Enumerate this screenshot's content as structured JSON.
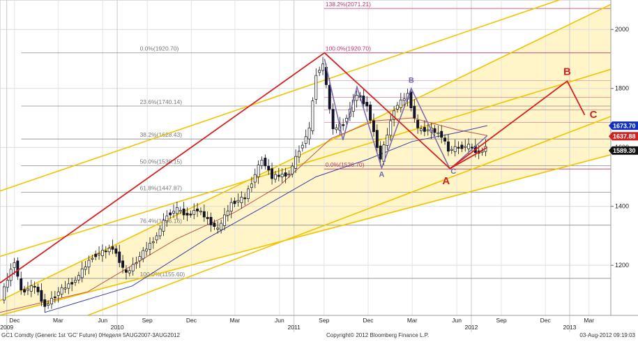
{
  "chart_data": {
    "type": "candlestick",
    "title": "",
    "xlabel": "",
    "ylabel": "",
    "ylim": [
      1030,
      2100
    ],
    "grid": true,
    "y_ticks": [
      1200,
      1400,
      1600,
      1800,
      2000
    ],
    "y_tick_labels": [
      "1200",
      "1400",
      "1600",
      "1800",
      "2000"
    ],
    "month_ticks": [
      {
        "label": "Dec",
        "date": "2009-12-01"
      },
      {
        "label": "Mar",
        "date": "2010-03-01"
      },
      {
        "label": "Jun",
        "date": "2010-06-01"
      },
      {
        "label": "Sep",
        "date": "2010-09-01"
      },
      {
        "label": "Dec",
        "date": "2010-12-01"
      },
      {
        "label": "Mar",
        "date": "2011-03-01"
      },
      {
        "label": "Jun",
        "date": "2011-06-01"
      },
      {
        "label": "Sep",
        "date": "2011-09-01"
      },
      {
        "label": "Dec",
        "date": "2011-12-01"
      },
      {
        "label": "Mar",
        "date": "2012-03-01"
      },
      {
        "label": "Jun",
        "date": "2012-06-01"
      },
      {
        "label": "Sep",
        "date": "2012-09-01"
      },
      {
        "label": "Dec",
        "date": "2012-12-01"
      },
      {
        "label": "Mar",
        "date": "2013-03-01"
      }
    ],
    "year_ticks": [
      {
        "label": "2009",
        "date": "2009-11-15"
      },
      {
        "label": "2010",
        "date": "2010-07-01"
      },
      {
        "label": "2011",
        "date": "2011-07-01"
      },
      {
        "label": "2012",
        "date": "2012-07-01"
      },
      {
        "label": "2013",
        "date": "2013-01-20"
      }
    ],
    "x_range": [
      "2009-11-01",
      "2013-04-15"
    ],
    "price_series": [
      {
        "date": "2009-11-06",
        "price": 1090
      },
      {
        "date": "2009-12-04",
        "price": 1215
      },
      {
        "date": "2009-12-18",
        "price": 1110
      },
      {
        "date": "2010-01-15",
        "price": 1130
      },
      {
        "date": "2010-02-05",
        "price": 1060
      },
      {
        "date": "2010-03-05",
        "price": 1110
      },
      {
        "date": "2010-04-09",
        "price": 1150
      },
      {
        "date": "2010-05-14",
        "price": 1230
      },
      {
        "date": "2010-06-25",
        "price": 1260
      },
      {
        "date": "2010-07-23",
        "price": 1170
      },
      {
        "date": "2010-08-20",
        "price": 1230
      },
      {
        "date": "2010-09-24",
        "price": 1300
      },
      {
        "date": "2010-10-15",
        "price": 1370
      },
      {
        "date": "2010-11-05",
        "price": 1390
      },
      {
        "date": "2010-11-26",
        "price": 1370
      },
      {
        "date": "2010-12-17",
        "price": 1390
      },
      {
        "date": "2011-01-28",
        "price": 1320
      },
      {
        "date": "2011-02-25",
        "price": 1410
      },
      {
        "date": "2011-03-25",
        "price": 1430
      },
      {
        "date": "2011-04-29",
        "price": 1560
      },
      {
        "date": "2011-05-20",
        "price": 1500
      },
      {
        "date": "2011-06-24",
        "price": 1510
      },
      {
        "date": "2011-07-15",
        "price": 1590
      },
      {
        "date": "2011-08-05",
        "price": 1660
      },
      {
        "date": "2011-08-19",
        "price": 1850
      },
      {
        "date": "2011-09-02",
        "price": 1880
      },
      {
        "date": "2011-09-23",
        "price": 1660
      },
      {
        "date": "2011-10-14",
        "price": 1680
      },
      {
        "date": "2011-11-11",
        "price": 1780
      },
      {
        "date": "2011-12-02",
        "price": 1740
      },
      {
        "date": "2011-12-30",
        "price": 1560
      },
      {
        "date": "2012-01-27",
        "price": 1730
      },
      {
        "date": "2012-02-24",
        "price": 1780
      },
      {
        "date": "2012-03-16",
        "price": 1660
      },
      {
        "date": "2012-04-13",
        "price": 1660
      },
      {
        "date": "2012-05-04",
        "price": 1640
      },
      {
        "date": "2012-05-18",
        "price": 1590
      },
      {
        "date": "2012-06-08",
        "price": 1600
      },
      {
        "date": "2012-06-29",
        "price": 1605
      },
      {
        "date": "2012-07-20",
        "price": 1580
      },
      {
        "date": "2012-08-03",
        "price": 1600
      }
    ],
    "moving_averages": [
      {
        "color": "#c0504d",
        "points": [
          [
            "2009-11-01",
            1040
          ],
          [
            "2010-05-01",
            1110
          ],
          [
            "2010-11-01",
            1290
          ],
          [
            "2011-03-01",
            1380
          ],
          [
            "2011-06-01",
            1470
          ],
          [
            "2011-09-15",
            1630
          ],
          [
            "2011-12-15",
            1690
          ],
          [
            "2012-03-01",
            1700
          ],
          [
            "2012-06-01",
            1660
          ],
          [
            "2012-08-03",
            1640
          ]
        ]
      },
      {
        "color": "#3a3ea0",
        "points": [
          [
            "2010-02-01",
            1040
          ],
          [
            "2010-08-01",
            1130
          ],
          [
            "2011-01-01",
            1290
          ],
          [
            "2011-05-01",
            1400
          ],
          [
            "2011-08-15",
            1500
          ],
          [
            "2011-12-01",
            1560
          ],
          [
            "2012-03-01",
            1620
          ],
          [
            "2012-06-01",
            1650
          ],
          [
            "2012-08-03",
            1674
          ]
        ]
      }
    ],
    "channel_lines": [
      {
        "color": "#f2c400",
        "points": [
          [
            "2009-11-01",
            1080
          ],
          [
            "2013-04-15",
            2085
          ]
        ]
      },
      {
        "color": "#f2c400",
        "points": [
          [
            "2009-11-01",
            1452
          ],
          [
            "2013-04-15",
            2160
          ]
        ]
      },
      {
        "color": "#f2c400",
        "points": [
          [
            "2009-11-01",
            1230
          ],
          [
            "2013-04-15",
            1865
          ]
        ]
      },
      {
        "color": "#f2c400",
        "points": [
          [
            "2009-11-01",
            1030
          ],
          [
            "2013-04-15",
            1575
          ]
        ]
      },
      {
        "color": "#f2c400",
        "points": [
          [
            "2010-05-01",
            1030
          ],
          [
            "2013-04-15",
            1705
          ]
        ]
      }
    ],
    "channel_fill": {
      "color": "#fff5c8",
      "points": [
        [
          "2009-11-01",
          1080
        ],
        [
          "2013-04-15",
          2085
        ],
        [
          "2013-04-15",
          1575
        ],
        [
          "2009-11-01",
          1030
        ]
      ]
    },
    "fib_retracement": {
      "color": "#8a8a8a",
      "x_start": "2009-12-15",
      "x_end": "2013-04-15",
      "levels": [
        {
          "label": "0.0%(1920.70)",
          "value": 1920.7
        },
        {
          "label": "23.6%(1740.14)",
          "value": 1740.14
        },
        {
          "label": "38.2%(1628.43)",
          "value": 1628.43
        },
        {
          "label": "50.0%(1538.15)",
          "value": 1538.15
        },
        {
          "label": "61.8%(1447.87)",
          "value": 1447.87
        },
        {
          "label": "76.4%(1336.16)",
          "value": 1336.16
        },
        {
          "label": "100.0%(1155.60)",
          "value": 1155.6
        }
      ]
    },
    "fib_extension": {
      "color": "#c0306a",
      "x_start": "2011-09-01",
      "x_end": "2013-04-15",
      "levels": [
        {
          "label": "138.2%(2071.21)",
          "value": 2071.21
        },
        {
          "label": "100.0%(1920.70)",
          "value": 1920.7
        },
        {
          "label": "0.0%(1526.70)",
          "value": 1526.7
        }
      ],
      "extra_levels": [
        1826,
        1770,
        1727,
        1685
      ]
    },
    "wave_red": {
      "color": "#d42020",
      "points": [
        [
          "2009-11-01",
          1140
        ],
        [
          "2011-09-02",
          1920.7
        ],
        [
          "2012-05-18",
          1528
        ],
        [
          "2013-01-15",
          1825
        ],
        [
          "2013-02-20",
          1710
        ]
      ]
    },
    "wave_red_extra": {
      "color": "#d42020",
      "points": [
        [
          "2012-05-18",
          1528
        ],
        [
          "2012-08-03",
          1600
        ]
      ]
    },
    "wave_purple": {
      "color": "#7b6bb0",
      "points": [
        [
          "2011-09-02",
          1900
        ],
        [
          "2011-10-10",
          1625
        ],
        [
          "2011-11-08",
          1805
        ],
        [
          "2011-12-29",
          1530
        ],
        [
          "2012-02-28",
          1800
        ],
        [
          "2012-05-18",
          1526
        ],
        [
          "2012-08-03",
          1640
        ]
      ]
    },
    "wave_labels": [
      {
        "text": "A",
        "date": "2011-12-29",
        "price": 1500,
        "color": "#6a6ab0",
        "size": 11
      },
      {
        "text": "B",
        "date": "2012-02-28",
        "price": 1820,
        "color": "#6a6ab0",
        "size": 11
      },
      {
        "text": "C",
        "date": "2012-05-25",
        "price": 1510,
        "color": "#6a6ab0",
        "size": 11
      },
      {
        "text": "A",
        "date": "2012-05-10",
        "price": 1475,
        "color": "#d42020",
        "size": 15
      },
      {
        "text": "B",
        "date": "2013-01-15",
        "price": 1845,
        "color": "#d42020",
        "size": 15
      },
      {
        "text": "C",
        "date": "2013-03-10",
        "price": 1700,
        "color": "#d42020",
        "size": 15
      }
    ],
    "price_tags": [
      {
        "label": "1673.70",
        "value": 1673.7,
        "color": "#1030c0"
      },
      {
        "label": "1637.88",
        "value": 1637.88,
        "color": "#d02020"
      },
      {
        "label": "1589.30",
        "value": 1589.3,
        "color": "#111111"
      }
    ]
  },
  "footer": {
    "left": "GC1 Comdty (Generic 1st 'GC' Future) 0Неделя 5AUG2007-3AUG2012",
    "center": "Copyright© 2012 Bloomberg Finance L.P.",
    "right": "03-Aug-2012 09:19:03"
  }
}
